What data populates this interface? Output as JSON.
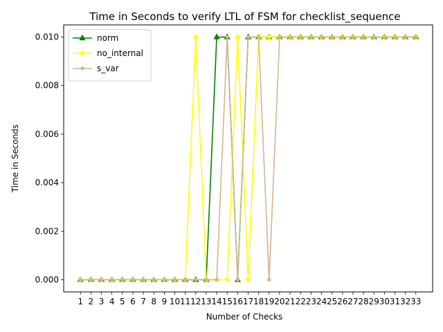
{
  "chart_data": {
    "type": "line",
    "title": "Time in Seconds to verify LTL of FSM for checklist_sequence",
    "xlabel": "Number of Checks",
    "ylabel": "Time in Seconds",
    "x": [
      1,
      2,
      3,
      4,
      5,
      6,
      7,
      8,
      9,
      10,
      11,
      12,
      13,
      14,
      15,
      16,
      17,
      18,
      19,
      20,
      21,
      22,
      23,
      24,
      25,
      26,
      27,
      28,
      29,
      30,
      31,
      32,
      33
    ],
    "x_tick_labels": [
      "1",
      "2",
      "3",
      "4",
      "5",
      "6",
      "7",
      "8",
      "9",
      "10",
      "11",
      "12",
      "13",
      "14",
      "15",
      "16",
      "17",
      "18",
      "19",
      "20",
      "21",
      "22",
      "23",
      "24",
      "25",
      "26",
      "27",
      "28",
      "29",
      "30",
      "31",
      "32",
      "33"
    ],
    "xlim": [
      -0.6,
      34.6
    ],
    "ylim": [
      -0.0005,
      0.0105
    ],
    "y_ticks": [
      0,
      0.002,
      0.004,
      0.006,
      0.008,
      0.01
    ],
    "y_tick_labels": [
      "0.000",
      "0.002",
      "0.004",
      "0.006",
      "0.008",
      "0.010"
    ],
    "grid": false,
    "legend_position": "upper-left",
    "series": [
      {
        "name": "norm",
        "color": "#008000",
        "marker": "triangle",
        "values": [
          0,
          0,
          0,
          0,
          0,
          0,
          0,
          0,
          0,
          0,
          0,
          0,
          0,
          0.01,
          0.01,
          0,
          0.01,
          0.01,
          0.01,
          0.01,
          0.01,
          0.01,
          0.01,
          0.01,
          0.01,
          0.01,
          0.01,
          0.01,
          0.01,
          0.01,
          0.01,
          0.01,
          0.01
        ]
      },
      {
        "name": "no_internal",
        "color": "#ffff00",
        "marker": "star",
        "values": [
          0,
          0,
          0,
          0,
          0,
          0,
          0,
          0,
          0,
          0,
          0,
          0.01,
          0,
          0,
          0,
          0.01,
          0,
          0.01,
          0.01,
          0.01,
          0.01,
          0.01,
          0.01,
          0.01,
          0.01,
          0.01,
          0.01,
          0.01,
          0.01,
          0.01,
          0.01,
          0.01,
          0.01
        ]
      },
      {
        "name": "s_var",
        "color": "#d2b48c",
        "marker": "circle",
        "values": [
          0,
          0,
          0,
          0,
          0,
          0,
          0,
          0,
          0,
          0,
          0,
          0,
          0,
          0,
          0.01,
          0,
          0.01,
          0.01,
          0,
          0.01,
          0.01,
          0.01,
          0.01,
          0.01,
          0.01,
          0.01,
          0.01,
          0.01,
          0.01,
          0.01,
          0.01,
          0.01,
          0.01
        ]
      }
    ]
  }
}
